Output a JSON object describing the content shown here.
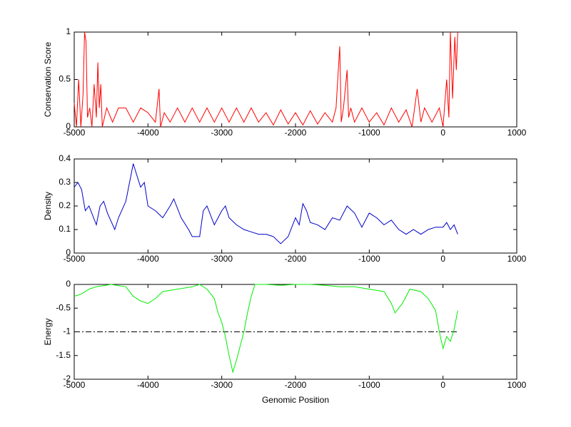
{
  "chart_data": [
    {
      "type": "line",
      "ylabel": "Conservation Score",
      "color": "#ff0000",
      "xlim": [
        -5000,
        1000
      ],
      "xticks": [
        -5000,
        -4000,
        -3000,
        -2000,
        -1000,
        0,
        1000
      ],
      "ylim": [
        0,
        1
      ],
      "yticks": [
        0,
        0.5,
        1
      ],
      "x": [
        -5000,
        -4970,
        -4940,
        -4910,
        -4880,
        -4860,
        -4840,
        -4820,
        -4790,
        -4760,
        -4730,
        -4700,
        -4680,
        -4660,
        -4640,
        -4620,
        -4560,
        -4480,
        -4400,
        -4300,
        -4200,
        -4100,
        -4000,
        -3900,
        -3850,
        -3830,
        -3780,
        -3700,
        -3600,
        -3500,
        -3400,
        -3300,
        -3200,
        -3100,
        -3000,
        -2900,
        -2800,
        -2700,
        -2600,
        -2500,
        -2400,
        -2300,
        -2200,
        -2100,
        -2000,
        -1900,
        -1800,
        -1700,
        -1600,
        -1500,
        -1450,
        -1400,
        -1380,
        -1350,
        -1300,
        -1280,
        -1250,
        -1200,
        -1100,
        -1000,
        -900,
        -800,
        -700,
        -600,
        -500,
        -420,
        -350,
        -300,
        -250,
        -150,
        -50,
        0,
        50,
        80,
        100,
        130,
        160,
        180,
        200
      ],
      "values": [
        0.25,
        0,
        0.5,
        0,
        0.35,
        1,
        0.9,
        0.1,
        0.2,
        0,
        0.45,
        0.1,
        0.68,
        0.2,
        0.45,
        0,
        0.2,
        0.05,
        0.2,
        0.2,
        0.05,
        0.2,
        0.15,
        0.05,
        0.4,
        0,
        0.15,
        0.05,
        0.2,
        0.05,
        0.2,
        0.05,
        0.2,
        0.05,
        0.2,
        0.05,
        0.2,
        0.05,
        0.2,
        0.05,
        0.15,
        0.02,
        0.18,
        0.03,
        0.15,
        0.02,
        0.17,
        0.03,
        0.15,
        0.05,
        0.2,
        0.85,
        0.05,
        0.2,
        0.6,
        0.1,
        0.2,
        0.05,
        0.2,
        0.05,
        0.15,
        0.02,
        0.2,
        0.05,
        0.18,
        0,
        0.4,
        0.05,
        0.2,
        0.05,
        0.2,
        0,
        0.5,
        0.1,
        1,
        0.3,
        0.95,
        0.6,
        1
      ]
    },
    {
      "type": "line",
      "ylabel": "Density",
      "color": "#0000cc",
      "xlim": [
        -5000,
        1000
      ],
      "xticks": [
        -5000,
        -4000,
        -3000,
        -2000,
        -1000,
        0,
        1000
      ],
      "ylim": [
        0,
        0.4
      ],
      "yticks": [
        0,
        0.1,
        0.2,
        0.3,
        0.4
      ],
      "x": [
        -5000,
        -4950,
        -4900,
        -4850,
        -4800,
        -4700,
        -4650,
        -4600,
        -4550,
        -4450,
        -4400,
        -4300,
        -4250,
        -4200,
        -4150,
        -4100,
        -4050,
        -4000,
        -3900,
        -3800,
        -3700,
        -3650,
        -3550,
        -3450,
        -3400,
        -3300,
        -3250,
        -3200,
        -3100,
        -3000,
        -2950,
        -2900,
        -2800,
        -2700,
        -2600,
        -2500,
        -2400,
        -2300,
        -2200,
        -2100,
        -2000,
        -1950,
        -1900,
        -1850,
        -1800,
        -1700,
        -1600,
        -1500,
        -1400,
        -1300,
        -1200,
        -1100,
        -1000,
        -900,
        -800,
        -700,
        -600,
        -500,
        -400,
        -300,
        -200,
        -100,
        0,
        50,
        100,
        150,
        200
      ],
      "values": [
        0.28,
        0.3,
        0.27,
        0.18,
        0.2,
        0.12,
        0.2,
        0.22,
        0.17,
        0.1,
        0.15,
        0.22,
        0.3,
        0.38,
        0.33,
        0.28,
        0.3,
        0.2,
        0.18,
        0.15,
        0.2,
        0.23,
        0.15,
        0.1,
        0.07,
        0.07,
        0.18,
        0.2,
        0.12,
        0.18,
        0.2,
        0.15,
        0.12,
        0.1,
        0.09,
        0.08,
        0.08,
        0.07,
        0.04,
        0.07,
        0.15,
        0.12,
        0.21,
        0.18,
        0.13,
        0.12,
        0.1,
        0.15,
        0.14,
        0.2,
        0.17,
        0.11,
        0.17,
        0.15,
        0.12,
        0.14,
        0.1,
        0.08,
        0.1,
        0.08,
        0.1,
        0.11,
        0.11,
        0.13,
        0.1,
        0.12,
        0.08
      ]
    },
    {
      "type": "line",
      "ylabel": "Energy",
      "xlabel": "Genomic Position",
      "color": "#00ee00",
      "xlim": [
        -5000,
        1000
      ],
      "xticks": [
        -5000,
        -4000,
        -3000,
        -2000,
        -1000,
        0,
        1000
      ],
      "ylim": [
        -2,
        0
      ],
      "yticks": [
        -2,
        -1.5,
        -1,
        -0.5,
        0
      ],
      "threshold": -1,
      "x": [
        -5000,
        -4900,
        -4800,
        -4700,
        -4500,
        -4300,
        -4200,
        -4100,
        -4000,
        -3900,
        -3800,
        -3600,
        -3400,
        -3300,
        -3200,
        -3100,
        -3050,
        -3000,
        -2950,
        -2900,
        -2850,
        -2800,
        -2750,
        -2700,
        -2650,
        -2600,
        -2550,
        -2400,
        -2200,
        -2000,
        -1800,
        -1600,
        -1400,
        -1200,
        -1000,
        -800,
        -700,
        -650,
        -550,
        -450,
        -300,
        -200,
        -100,
        -50,
        0,
        50,
        100,
        150,
        200
      ],
      "values": [
        -0.25,
        -0.2,
        -0.1,
        -0.05,
        0,
        -0.05,
        -0.25,
        -0.35,
        -0.4,
        -0.3,
        -0.15,
        -0.1,
        -0.05,
        0,
        -0.1,
        -0.3,
        -0.6,
        -0.8,
        -1.1,
        -1.5,
        -1.85,
        -1.6,
        -1.3,
        -1,
        -0.6,
        -0.25,
        0,
        0,
        -0.02,
        0,
        0,
        -0.02,
        -0.05,
        -0.05,
        -0.1,
        -0.15,
        -0.4,
        -0.6,
        -0.4,
        -0.1,
        -0.15,
        -0.3,
        -0.55,
        -1,
        -1.35,
        -1.1,
        -1.2,
        -0.95,
        -0.55
      ]
    }
  ]
}
